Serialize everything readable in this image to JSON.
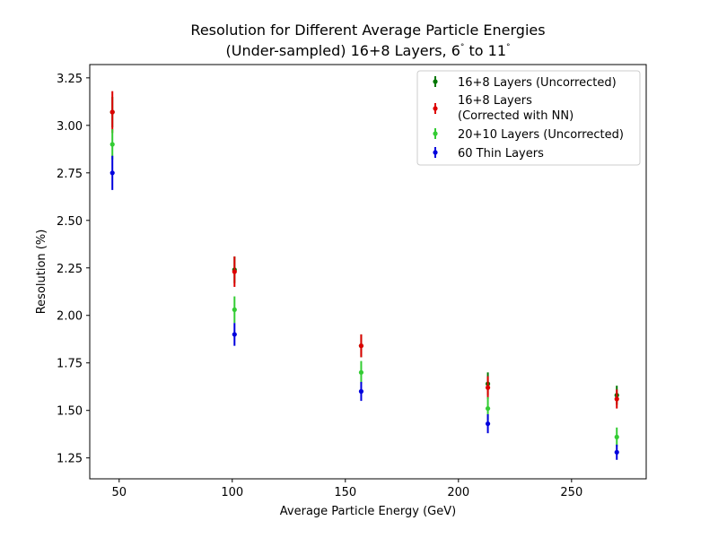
{
  "chart_data": {
    "type": "scatter",
    "title_line1": "Resolution for Different Average Particle Energies",
    "title_line2_prefix": "(Under-sampled) 16+8 Layers, 6",
    "title_line2_mid": " to 11",
    "degree_symbol": "°",
    "xlabel": "Average Particle Energy (GeV)",
    "ylabel": "Resolution (%)",
    "xlim": [
      37,
      283
    ],
    "ylim": [
      1.14,
      3.32
    ],
    "xticks": [
      50,
      100,
      150,
      200,
      250
    ],
    "yticks": [
      1.25,
      1.5,
      1.75,
      2.0,
      2.25,
      2.5,
      2.75,
      3.0,
      3.25
    ],
    "legend_position": "top-right",
    "series": [
      {
        "name": "16+8 Layers (Uncorrected)",
        "color": "#007700",
        "x": [
          47,
          101,
          157,
          213,
          270
        ],
        "y": [
          3.07,
          2.24,
          1.84,
          1.64,
          1.58
        ],
        "yerr": [
          0.08,
          0.07,
          0.06,
          0.06,
          0.05
        ]
      },
      {
        "name": "16+8 Layers (Corrected with NN)",
        "legend_lines": [
          "16+8 Layers",
          "(Corrected with NN)"
        ],
        "color": "#dd0000",
        "x": [
          47,
          101,
          157,
          213,
          270
        ],
        "y": [
          3.07,
          2.23,
          1.84,
          1.62,
          1.56
        ],
        "yerr": [
          0.11,
          0.08,
          0.06,
          0.06,
          0.05
        ]
      },
      {
        "name": "20+10 Layers (Uncorrected)",
        "color": "#33cc33",
        "x": [
          47,
          101,
          157,
          213,
          270
        ],
        "y": [
          2.9,
          2.03,
          1.7,
          1.51,
          1.36
        ],
        "yerr": [
          0.08,
          0.07,
          0.06,
          0.06,
          0.05
        ]
      },
      {
        "name": "60 Thin Layers",
        "color": "#0000dd",
        "x": [
          47,
          101,
          157,
          213,
          270
        ],
        "y": [
          2.75,
          1.9,
          1.6,
          1.43,
          1.28
        ],
        "yerr": [
          0.09,
          0.06,
          0.05,
          0.05,
          0.04
        ]
      }
    ]
  }
}
